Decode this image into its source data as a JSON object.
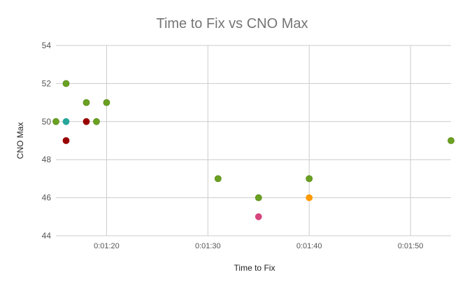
{
  "chart_data": {
    "type": "scatter",
    "title": "Time to Fix vs CNO Max",
    "xlabel": "Time to Fix",
    "ylabel": "CNO Max",
    "x_unit": "time (h:mm:ss)",
    "xlim": [
      "0:01:15",
      "0:01:54"
    ],
    "ylim": [
      44,
      54
    ],
    "xticks": [
      "0:01:20",
      "0:01:30",
      "0:01:40",
      "0:01:50"
    ],
    "yticks": [
      44,
      46,
      48,
      50,
      52,
      54
    ],
    "grid": true,
    "legend": "none",
    "points": [
      {
        "x": "0:01:15",
        "y": 50,
        "color": "#6aa121"
      },
      {
        "x": "0:01:16",
        "y": 52,
        "color": "#6aa121"
      },
      {
        "x": "0:01:16",
        "y": 50,
        "color": "#26a69a"
      },
      {
        "x": "0:01:16",
        "y": 49,
        "color": "#990000"
      },
      {
        "x": "0:01:18",
        "y": 51,
        "color": "#6aa121"
      },
      {
        "x": "0:01:18",
        "y": 50,
        "color": "#990000"
      },
      {
        "x": "0:01:19",
        "y": 50,
        "color": "#6aa121"
      },
      {
        "x": "0:01:20",
        "y": 51,
        "color": "#6aa121"
      },
      {
        "x": "0:01:31",
        "y": 47,
        "color": "#6aa121"
      },
      {
        "x": "0:01:35",
        "y": 46,
        "color": "#6aa121"
      },
      {
        "x": "0:01:35",
        "y": 45,
        "color": "#d6457d"
      },
      {
        "x": "0:01:40",
        "y": 47,
        "color": "#6aa121"
      },
      {
        "x": "0:01:40",
        "y": 46,
        "color": "#ff9900"
      },
      {
        "x": "0:01:54",
        "y": 49,
        "color": "#6aa121"
      }
    ],
    "colors": {
      "grid": "#cccccc",
      "axis_text": "#555555",
      "title_text": "#757575",
      "point_stroke": "#5a8a1a"
    }
  }
}
